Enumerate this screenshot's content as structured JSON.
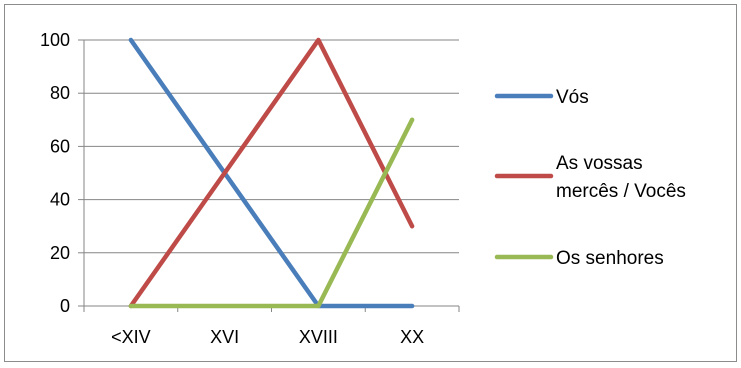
{
  "chart_data": {
    "type": "line",
    "title": "",
    "xlabel": "",
    "ylabel": "",
    "categories": [
      "<XIV",
      "XVI",
      "XVIII",
      "XX"
    ],
    "ylim": [
      0,
      100
    ],
    "yticks": [
      0,
      20,
      40,
      60,
      80,
      100
    ],
    "grid": true,
    "legend_position": "right",
    "series": [
      {
        "name": "Vós",
        "values": [
          100,
          50,
          0,
          0
        ],
        "color": "#4a7ebb"
      },
      {
        "name": "As vossas mercês / Vocês",
        "name_lines": [
          "As vossas",
          "mercês / Vocês"
        ],
        "values": [
          0,
          50,
          100,
          30
        ],
        "color": "#be4b48"
      },
      {
        "name": "Os senhores",
        "values": [
          0,
          0,
          0,
          70
        ],
        "color": "#98b954"
      }
    ]
  }
}
